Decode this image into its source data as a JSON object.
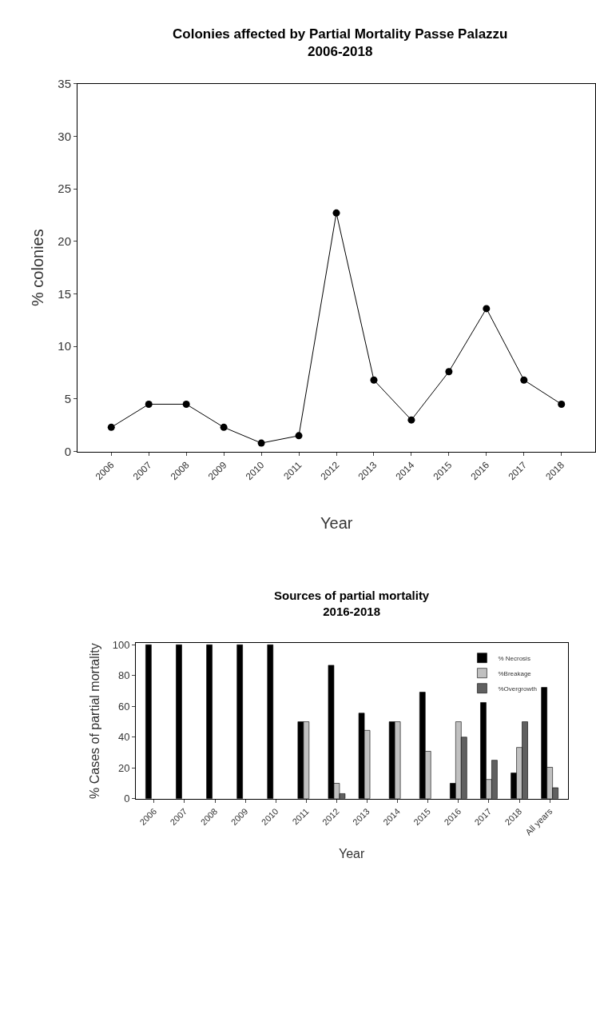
{
  "chart_data": [
    {
      "type": "line",
      "title": "Colonies affected by Partial Mortality Passe Palazzu\n2006-2018",
      "xlabel": "Year",
      "ylabel": "% colonies",
      "categories": [
        "2006",
        "2007",
        "2008",
        "2009",
        "2010",
        "2011",
        "2012",
        "2013",
        "2014",
        "2015",
        "2016",
        "2017",
        "2018"
      ],
      "series": [
        {
          "color": "#000000",
          "values": [
            2.3,
            4.5,
            4.5,
            2.3,
            0.8,
            1.5,
            22.7,
            6.8,
            3.0,
            7.6,
            13.6,
            6.8,
            4.5
          ]
        }
      ],
      "ylim": [
        0,
        35
      ],
      "yticks": [
        0,
        5,
        10,
        15,
        20,
        25,
        30,
        35
      ],
      "marker": "circle",
      "line_style": "solid"
    },
    {
      "type": "bar",
      "title": "Sources of partial mortality\n2016-2018",
      "xlabel": "Year",
      "ylabel": "% Cases of partial mortality",
      "categories": [
        "2006",
        "2007",
        "2008",
        "2009",
        "2010",
        "2011",
        "2012",
        "2013",
        "2014",
        "2015",
        "2016",
        "2017",
        "2018",
        "All years"
      ],
      "series": [
        {
          "name": "% Necrosis",
          "color": "#000000",
          "values": [
            100,
            100,
            100,
            100,
            100,
            50,
            86.7,
            55.6,
            50,
            69.2,
            10,
            62.5,
            16.7,
            72.3
          ]
        },
        {
          "name": "%Breakage",
          "color": "#c0c0c0",
          "values": [
            null,
            null,
            null,
            null,
            null,
            50,
            10,
            44.4,
            50,
            30.8,
            50,
            12.5,
            33.3,
            20.4
          ]
        },
        {
          "name": "%Overgrowth",
          "color": "#606060",
          "values": [
            null,
            null,
            null,
            null,
            null,
            null,
            3.3,
            null,
            null,
            null,
            40,
            25,
            50,
            7.1
          ]
        }
      ],
      "ylim": [
        0,
        101
      ],
      "yticks": [
        0,
        20,
        40,
        60,
        80,
        100
      ],
      "legend": "top right"
    }
  ]
}
